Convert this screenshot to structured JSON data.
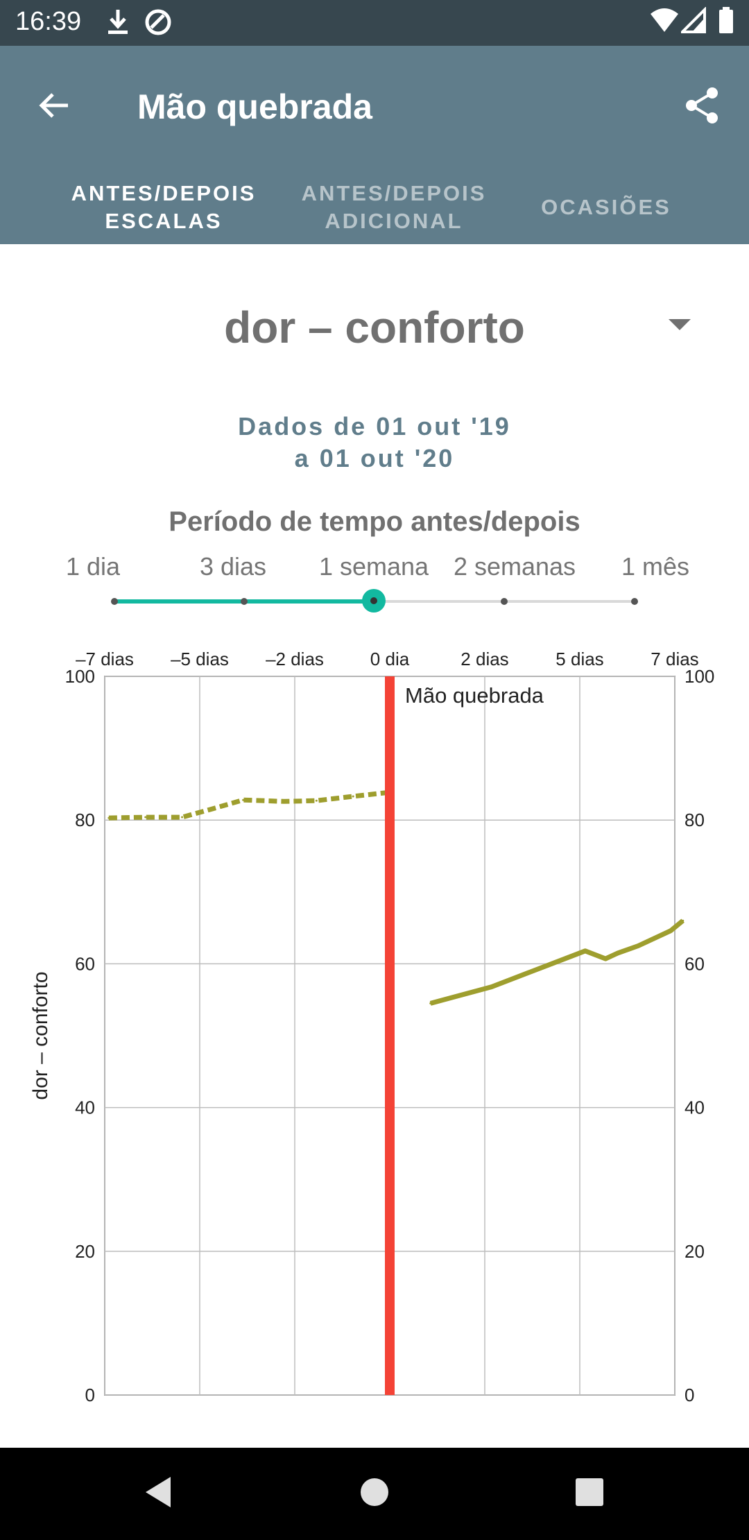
{
  "status_bar": {
    "time": "16:39",
    "icons": [
      "download-icon",
      "sync-icon",
      "wifi-icon",
      "signal-icon",
      "battery-icon"
    ]
  },
  "app_bar": {
    "title": "Mão quebrada",
    "back_icon": "arrow-left-icon",
    "share_icon": "share-icon",
    "background": "#607d8b"
  },
  "tabs": [
    {
      "line1": "ANTES/DEPOIS",
      "line2": "ESCALAS",
      "active": true
    },
    {
      "line1": "ANTES/DEPOIS",
      "line2": "ADICIONAL",
      "active": false
    },
    {
      "line1": "OCASIÕES",
      "line2": "",
      "active": false
    }
  ],
  "metric": {
    "selected": "dor – conforto"
  },
  "date_range": {
    "line1": "Dados de 01 out '19",
    "line2": "a 01 out '20"
  },
  "period": {
    "title": "Período de tempo antes/depois",
    "options": [
      "1 dia",
      "3 dias",
      "1 semana",
      "2 semanas",
      "1 mês"
    ],
    "selected_index": 2,
    "accent": "#12b9a0"
  },
  "chart_data": {
    "type": "line",
    "x_ticks": [
      "–7 dias",
      "–5 dias",
      "–2 dias",
      "0 dia",
      "2 dias",
      "5 dias",
      "7 dias"
    ],
    "xlim": [
      -7,
      7
    ],
    "ylim": [
      0,
      100
    ],
    "y_ticks": [
      0,
      20,
      40,
      60,
      80,
      100
    ],
    "ylabel": "dor – conforto",
    "event": {
      "x": 0,
      "label": "Mão quebrada",
      "color": "#f44336"
    },
    "series": [
      {
        "style": "dashed",
        "color": "#9e9e2e",
        "points": [
          [
            -6.9,
            80.3
          ],
          [
            -6.0,
            80.4
          ],
          [
            -5.1,
            80.4
          ],
          [
            -4.4,
            81.5
          ],
          [
            -3.6,
            82.8
          ],
          [
            -2.6,
            82.6
          ],
          [
            -1.8,
            82.7
          ],
          [
            -0.9,
            83.3
          ],
          [
            -0.1,
            83.8
          ]
        ]
      },
      {
        "style": "solid",
        "color": "#9e9e2e",
        "points": [
          [
            1.0,
            54.5
          ],
          [
            2.5,
            56.8
          ],
          [
            4.8,
            61.8
          ],
          [
            5.3,
            60.7
          ],
          [
            5.6,
            61.5
          ],
          [
            6.1,
            62.5
          ],
          [
            6.9,
            64.6
          ],
          [
            7.2,
            66.0
          ]
        ]
      }
    ],
    "grid": true
  }
}
